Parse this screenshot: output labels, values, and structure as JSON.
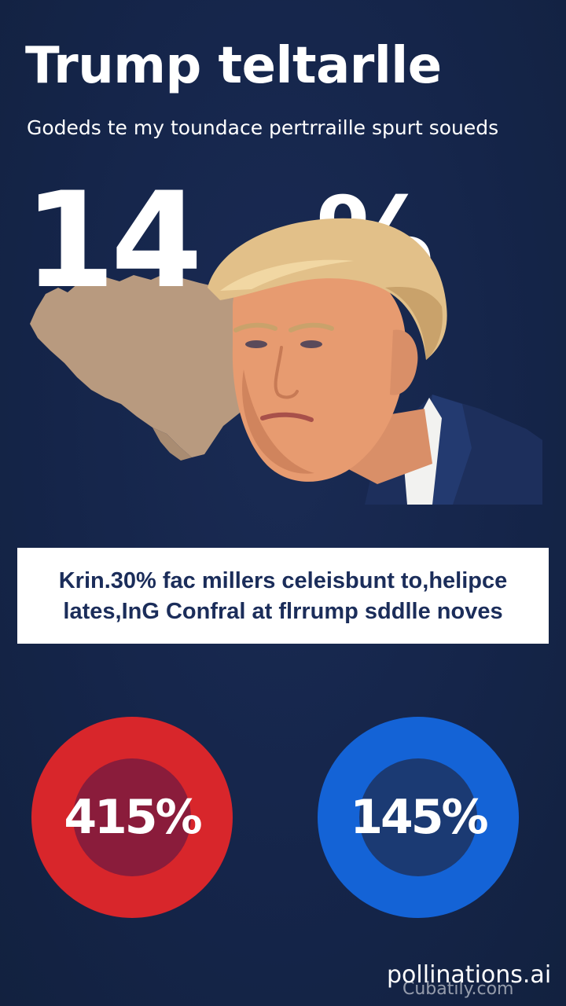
{
  "headline": "Trump teltarlle",
  "subline": "Godeds te my toundace pertrraille spurt soueds",
  "hero": {
    "stat_left": "14",
    "stat_right": "%"
  },
  "banner": {
    "line1": "Krin.30% fac millers celeisbunt to,helipce",
    "line2": "lates,InG Confral at flrrump sddlle noves"
  },
  "stats": [
    {
      "value": "415%",
      "color": "#d8262b",
      "inner_color": "#8a1c3b"
    },
    {
      "value": "145%",
      "color": "#1463d6",
      "inner_color": "#1b3a73"
    }
  ],
  "watermark": {
    "text": "pollinations.ai",
    "ghost_text": "Cubatily.com"
  },
  "colors": {
    "background": "#15254a",
    "map_fill": "#b89a7f",
    "banner_text": "#1b2d5a"
  }
}
